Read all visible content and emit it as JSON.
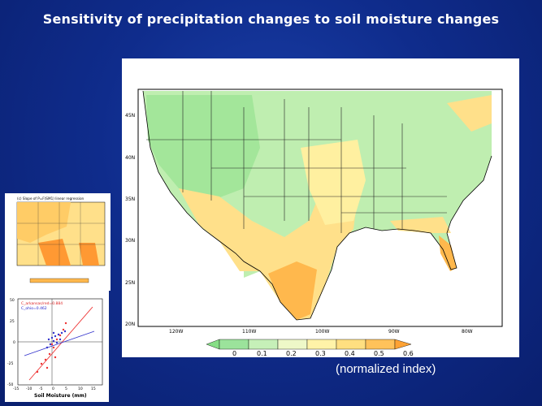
{
  "slide": {
    "title": "Sensitivity of precipitation changes to soil moisture changes",
    "caption": "(normalized index)"
  },
  "main_map": {
    "lat_labels": [
      "45N",
      "40N",
      "35N",
      "30N",
      "25N",
      "20N"
    ],
    "lon_labels": [
      "120W",
      "110W",
      "100W",
      "90W",
      "80W"
    ],
    "colorbar_labels": [
      "0",
      "0.1",
      "0.2",
      "0.3",
      "0.4",
      "0.5",
      "0.6"
    ],
    "colors": {
      "low": "#9be39b",
      "mid_low": "#d7f5c8",
      "mid": "#fff3a8",
      "high": "#ffcc66",
      "max": "#ff9900"
    }
  },
  "thumb_map": {
    "title": "(c) Slope of P=F(SM1) linear regression"
  },
  "thumb_scatter": {
    "legend_line1": "C_arkansas/red=0.884",
    "legend_line2": "C_ohio=0.462",
    "xlabel": "Soil Moisture (mm)",
    "x_ticks": [
      "-15",
      "-10",
      "-5",
      "0",
      "5",
      "10",
      "15"
    ],
    "y_ticks": [
      "50",
      "25",
      "0",
      "-25",
      "-50"
    ]
  }
}
